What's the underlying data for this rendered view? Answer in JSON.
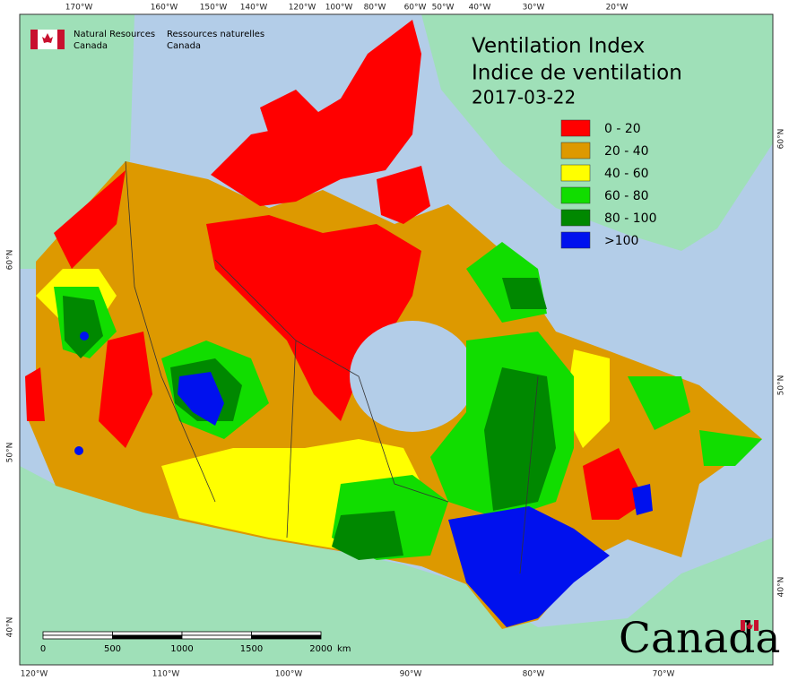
{
  "agency": {
    "en": [
      "Natural Resources",
      "Canada"
    ],
    "fr": [
      "Ressources naturelles",
      "Canada"
    ]
  },
  "title": {
    "en": "Ventilation Index",
    "fr": "Indice de ventilation",
    "date": "2017-03-22"
  },
  "legend": [
    {
      "label": "0 - 20",
      "color": "#ff0000"
    },
    {
      "label": "20 - 40",
      "color": "#dd9900"
    },
    {
      "label": "40 - 60",
      "color": "#ffff00"
    },
    {
      "label": "60 - 80",
      "color": "#11dd00"
    },
    {
      "label": "80 - 100",
      "color": "#008800"
    },
    {
      "label": ">100",
      "color": "#0011ee"
    }
  ],
  "graticule": {
    "top": [
      "170°W",
      "160°W",
      "150°W",
      "140°W",
      "120°W",
      "100°W",
      "80°W",
      "60°W",
      "50°W",
      "40°W",
      "30°W",
      "20°W"
    ],
    "bottom": [
      "120°W",
      "110°W",
      "100°W",
      "90°W",
      "80°W",
      "70°W"
    ],
    "left": [
      "60°N",
      "50°N",
      "40°N"
    ],
    "right": [
      "60°N",
      "50°N",
      "40°N"
    ]
  },
  "scale_bar": {
    "ticks": [
      0,
      500,
      1000,
      1500,
      2000
    ],
    "unit": "km"
  },
  "wordmark": "Canada"
}
